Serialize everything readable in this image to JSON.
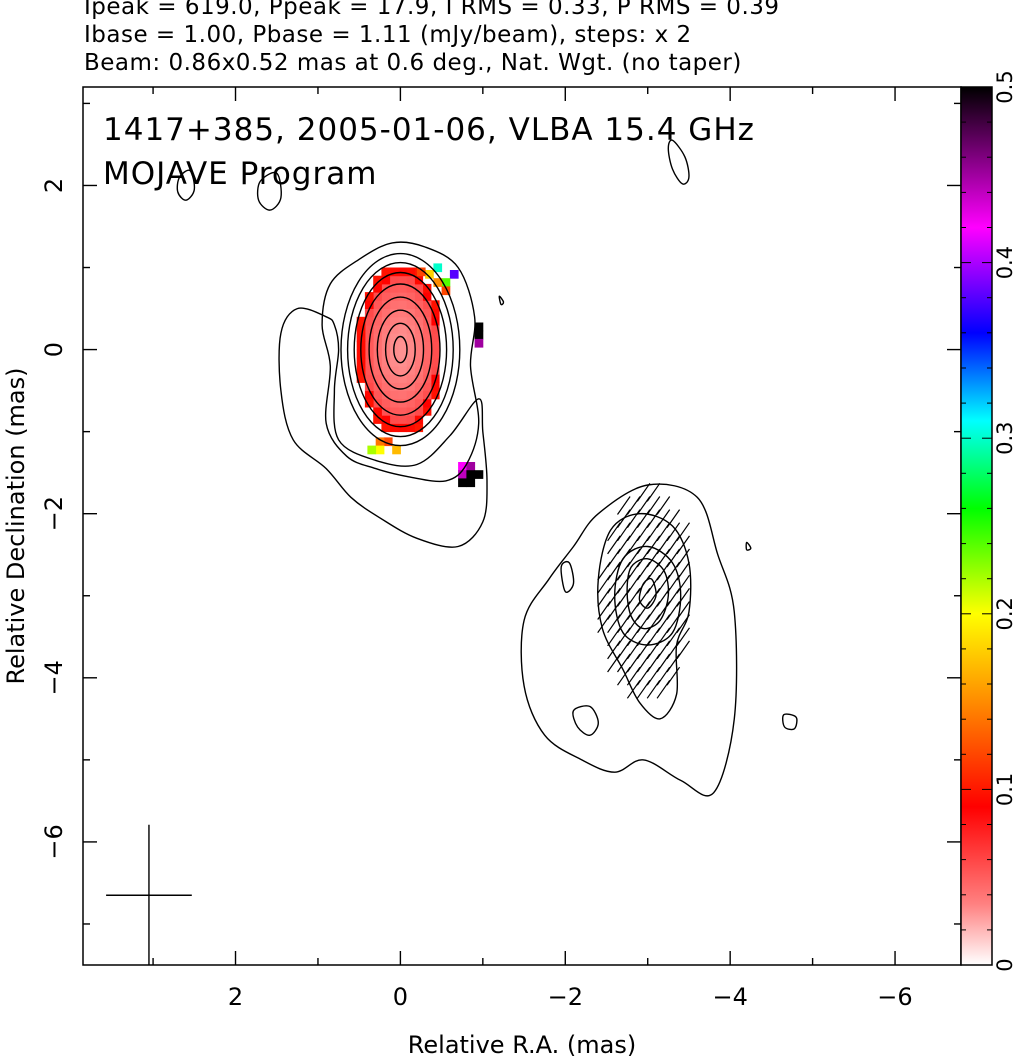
{
  "header": {
    "line1": "Ipeak = 619.0, Ppeak = 17.9, I RMS = 0.33, P RMS = 0.39",
    "line2": "Ibase = 1.00, Pbase = 1.11 (mJy/beam), steps: x 2",
    "line3": "Beam: 0.86x0.52 mas at 0.6 deg., Nat. Wgt. (no taper)"
  },
  "chart_data": {
    "type": "heatmap",
    "title": "1417+385, 2005-01-06, VLBA 15.4 GHz",
    "subtitle": "MOJAVE Program",
    "xlabel": "Relative R.A. (mas)",
    "ylabel": "Relative Declination (mas)",
    "xlim": [
      3.85,
      -6.8
    ],
    "ylim": [
      -7.5,
      3.2
    ],
    "x_ticks": [
      2,
      0,
      -2,
      -4,
      -6
    ],
    "y_ticks": [
      2,
      0,
      -2,
      -4,
      -6
    ],
    "x_tick_labels": [
      "2",
      "0",
      "−2",
      "−4",
      "−6"
    ],
    "y_tick_labels": [
      "2",
      "0",
      "−2",
      "−4",
      "−6"
    ],
    "colorbar": {
      "range": [
        0,
        0.5
      ],
      "ticks": [
        0,
        0.1,
        0.2,
        0.3,
        0.4,
        0.5
      ],
      "tick_labels": [
        "0",
        "0.1",
        "0.2",
        "0.3",
        "0.4",
        "0.5"
      ],
      "colors": [
        "#ffffff",
        "#ff8080",
        "#ff0000",
        "#ff8c00",
        "#ffff00",
        "#00ff00",
        "#00ffff",
        "#0000ff",
        "#ff00ff",
        "#000000"
      ]
    },
    "header_values": {
      "Ipeak": 619.0,
      "Ppeak": 17.9,
      "I_RMS": 0.33,
      "P_RMS": 0.39,
      "Ibase": 1.0,
      "Pbase": 1.11,
      "units": "mJy/beam",
      "step_factor": 2,
      "beam_major_mas": 0.86,
      "beam_minor_mas": 0.52,
      "beam_pa_deg": 0.6,
      "weighting": "Nat. Wgt. (no taper)"
    },
    "core": {
      "ra": 0.0,
      "dec": 0.0,
      "contours": [
        {
          "a": 0.08,
          "b": 0.16
        },
        {
          "a": 0.18,
          "b": 0.32
        },
        {
          "a": 0.28,
          "b": 0.48
        },
        {
          "a": 0.38,
          "b": 0.64
        },
        {
          "a": 0.48,
          "b": 0.8
        },
        {
          "a": 0.56,
          "b": 0.94
        },
        {
          "a": 0.64,
          "b": 1.06
        },
        {
          "a": 0.72,
          "b": 1.17
        }
      ],
      "pol_fraction_level": 0.03,
      "pol_extent": {
        "a": 0.52,
        "b": 1.05
      }
    },
    "outer_contours": [
      {
        "name": "envelope-inner",
        "points": [
          [
            0.5,
            1.1
          ],
          [
            0.85,
            0.8
          ],
          [
            0.95,
            0.3
          ],
          [
            0.85,
            -0.2
          ],
          [
            0.9,
            -0.9
          ],
          [
            0.65,
            -1.3
          ],
          [
            0.3,
            -1.45
          ],
          [
            -0.1,
            -1.55
          ],
          [
            -0.55,
            -1.6
          ],
          [
            -0.8,
            -1.4
          ],
          [
            -0.95,
            -0.9
          ],
          [
            -0.85,
            -0.2
          ],
          [
            -0.9,
            0.4
          ],
          [
            -0.7,
            1.0
          ],
          [
            -0.3,
            1.25
          ],
          [
            0.1,
            1.3
          ]
        ]
      },
      {
        "name": "envelope-outer",
        "points": [
          [
            0.9,
            0.4
          ],
          [
            1.25,
            0.5
          ],
          [
            1.45,
            0.2
          ],
          [
            1.45,
            -0.5
          ],
          [
            1.3,
            -1.1
          ],
          [
            0.9,
            -1.45
          ],
          [
            0.6,
            -1.8
          ],
          [
            0.25,
            -2.05
          ],
          [
            -0.2,
            -2.3
          ],
          [
            -0.7,
            -2.4
          ],
          [
            -1.0,
            -2.1
          ],
          [
            -1.05,
            -1.6
          ],
          [
            -1.0,
            -1.0
          ],
          [
            -0.95,
            -0.6
          ],
          [
            -0.6,
            -1.05
          ],
          [
            -0.2,
            -1.4
          ],
          [
            0.3,
            -1.35
          ],
          [
            0.75,
            -1.1
          ],
          [
            0.8,
            -0.5
          ],
          [
            0.75,
            0.0
          ],
          [
            0.8,
            0.3
          ]
        ]
      },
      {
        "name": "jet-outer",
        "points": [
          [
            -2.4,
            -2.0
          ],
          [
            -3.0,
            -1.65
          ],
          [
            -3.6,
            -1.8
          ],
          [
            -3.85,
            -2.5
          ],
          [
            -4.05,
            -3.2
          ],
          [
            -4.05,
            -4.5
          ],
          [
            -3.8,
            -5.4
          ],
          [
            -3.4,
            -5.25
          ],
          [
            -2.95,
            -5.0
          ],
          [
            -2.6,
            -5.15
          ],
          [
            -2.2,
            -5.0
          ],
          [
            -1.75,
            -4.7
          ],
          [
            -1.5,
            -4.1
          ],
          [
            -1.5,
            -3.3
          ],
          [
            -1.8,
            -2.8
          ],
          [
            -2.1,
            -2.4
          ]
        ]
      },
      {
        "name": "jet-mid",
        "points": [
          [
            -2.55,
            -2.2
          ],
          [
            -2.9,
            -2.0
          ],
          [
            -3.3,
            -2.15
          ],
          [
            -3.5,
            -2.6
          ],
          [
            -3.5,
            -3.2
          ],
          [
            -3.35,
            -3.6
          ],
          [
            -3.35,
            -4.2
          ],
          [
            -3.15,
            -4.5
          ],
          [
            -2.9,
            -4.3
          ],
          [
            -2.7,
            -3.9
          ],
          [
            -2.45,
            -3.4
          ],
          [
            -2.4,
            -2.8
          ]
        ]
      },
      {
        "name": "jet-c1",
        "points": [
          [
            -2.7,
            -2.55
          ],
          [
            -3.0,
            -2.4
          ],
          [
            -3.3,
            -2.6
          ],
          [
            -3.4,
            -3.0
          ],
          [
            -3.3,
            -3.45
          ],
          [
            -3.0,
            -3.6
          ],
          [
            -2.7,
            -3.45
          ],
          [
            -2.6,
            -3.0
          ]
        ]
      },
      {
        "name": "jet-c2",
        "points": [
          [
            -2.8,
            -2.65
          ],
          [
            -3.0,
            -2.55
          ],
          [
            -3.2,
            -2.7
          ],
          [
            -3.25,
            -3.0
          ],
          [
            -3.15,
            -3.3
          ],
          [
            -2.95,
            -3.4
          ],
          [
            -2.8,
            -3.25
          ],
          [
            -2.75,
            -2.95
          ]
        ]
      },
      {
        "name": "jet-c3",
        "points": [
          [
            -2.95,
            -2.85
          ],
          [
            -3.05,
            -2.8
          ],
          [
            -3.1,
            -3.0
          ],
          [
            -3.0,
            -3.15
          ],
          [
            -2.9,
            -3.05
          ]
        ]
      },
      {
        "name": "blob-left-1",
        "points": [
          [
            2.55,
            2.18
          ],
          [
            2.68,
            2.1
          ],
          [
            2.7,
            1.92
          ],
          [
            2.6,
            1.82
          ],
          [
            2.5,
            1.95
          ]
        ]
      },
      {
        "name": "blob-left-2",
        "points": [
          [
            1.5,
            2.15
          ],
          [
            1.7,
            2.05
          ],
          [
            1.72,
            1.82
          ],
          [
            1.58,
            1.7
          ],
          [
            1.45,
            1.85
          ]
        ]
      },
      {
        "name": "blob-top-right",
        "points": [
          [
            -3.3,
            2.55
          ],
          [
            -3.45,
            2.35
          ],
          [
            -3.5,
            2.1
          ],
          [
            -3.42,
            2.02
          ],
          [
            -3.3,
            2.2
          ],
          [
            -3.25,
            2.45
          ]
        ]
      },
      {
        "name": "blob-small-1",
        "points": [
          [
            -1.2,
            0.65
          ],
          [
            -1.25,
            0.58
          ],
          [
            -1.22,
            0.55
          ]
        ]
      },
      {
        "name": "blob-small-2",
        "points": [
          [
            -4.2,
            -2.35
          ],
          [
            -4.25,
            -2.42
          ],
          [
            -4.2,
            -2.44
          ]
        ]
      },
      {
        "name": "blob-jet-left",
        "points": [
          [
            -1.95,
            -2.65
          ],
          [
            -2.05,
            -2.6
          ],
          [
            -2.1,
            -2.85
          ],
          [
            -2.0,
            -2.95
          ]
        ]
      },
      {
        "name": "blob-bottom-1",
        "points": [
          [
            -2.1,
            -4.4
          ],
          [
            -2.3,
            -4.35
          ],
          [
            -2.4,
            -4.55
          ],
          [
            -2.3,
            -4.7
          ],
          [
            -2.15,
            -4.6
          ]
        ]
      },
      {
        "name": "blob-right",
        "points": [
          [
            -4.65,
            -4.45
          ],
          [
            -4.8,
            -4.48
          ],
          [
            -4.78,
            -4.62
          ],
          [
            -4.66,
            -4.6
          ]
        ]
      }
    ],
    "pol_edge_pixels": [
      {
        "ra": -0.65,
        "dec": 0.92,
        "v": 0.38
      },
      {
        "ra": -0.55,
        "dec": 0.82,
        "v": 0.24
      },
      {
        "ra": -0.45,
        "dec": 1.0,
        "v": 0.3
      },
      {
        "ra": -0.35,
        "dec": 0.92,
        "v": 0.18
      },
      {
        "ra": -0.45,
        "dec": 0.82,
        "v": 0.15
      },
      {
        "ra": -0.55,
        "dec": 0.72,
        "v": 0.12
      },
      {
        "ra": -0.25,
        "dec": 0.95,
        "v": 0.12
      },
      {
        "ra": 0.15,
        "dec": -1.12,
        "v": 0.12
      },
      {
        "ra": 0.25,
        "dec": -1.12,
        "v": 0.14
      },
      {
        "ra": 0.25,
        "dec": -1.22,
        "v": 0.2
      },
      {
        "ra": 0.35,
        "dec": -1.22,
        "v": 0.22
      },
      {
        "ra": 0.05,
        "dec": -1.22,
        "v": 0.17
      },
      {
        "ra": -0.95,
        "dec": 0.28,
        "v": 0.5
      },
      {
        "ra": -0.95,
        "dec": 0.18,
        "v": 0.5
      },
      {
        "ra": -0.95,
        "dec": 0.08,
        "v": 0.45
      },
      {
        "ra": -0.75,
        "dec": -1.42,
        "v": 0.42
      },
      {
        "ra": -0.85,
        "dec": -1.42,
        "v": 0.45
      },
      {
        "ra": -0.75,
        "dec": -1.52,
        "v": 0.44
      },
      {
        "ra": -0.85,
        "dec": -1.52,
        "v": 0.5
      },
      {
        "ra": -0.95,
        "dec": -1.52,
        "v": 0.5
      },
      {
        "ra": -0.85,
        "dec": -1.62,
        "v": 0.5
      },
      {
        "ra": -0.75,
        "dec": -1.62,
        "v": 0.5
      }
    ],
    "evpa_vectors": {
      "ra_center": -3.0,
      "dec_center": -3.0,
      "extent_ra": 0.55,
      "extent_dec": 1.3,
      "angle_deg": 35
    },
    "beam_cross": {
      "ra": 3.05,
      "dec": -6.65,
      "major": 0.86,
      "minor": 0.52
    }
  }
}
